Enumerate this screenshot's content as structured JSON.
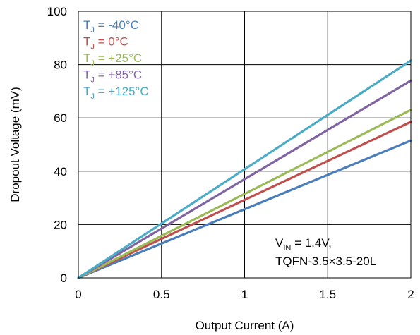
{
  "chart_data": {
    "type": "line",
    "title": "",
    "xlabel": "Output Current (A)",
    "ylabel": "Dropout Voltage (mV)",
    "xlim": [
      0,
      2
    ],
    "ylim": [
      0,
      100
    ],
    "xticks": [
      0,
      0.5,
      1,
      1.5,
      2
    ],
    "xtick_labels": [
      "0",
      "0.5",
      "1",
      "1.5",
      "2"
    ],
    "yticks": [
      0,
      20,
      40,
      60,
      80,
      100
    ],
    "ytick_labels": [
      "0",
      "20",
      "40",
      "60",
      "80",
      "100"
    ],
    "grid": true,
    "legend_position": "top-left",
    "series": [
      {
        "name": "T",
        "subscript": "J",
        "suffix": " = -40°C",
        "color": "#4a7ebb",
        "x": [
          0,
          2
        ],
        "y": [
          0,
          51.5
        ]
      },
      {
        "name": "T",
        "subscript": "J",
        "suffix": " = 0°C",
        "color": "#c0504d",
        "x": [
          0,
          2
        ],
        "y": [
          0,
          58.5
        ]
      },
      {
        "name": "T",
        "subscript": "J",
        "suffix": " = +25°C",
        "color": "#9bbb59",
        "x": [
          0,
          2
        ],
        "y": [
          0,
          63
        ]
      },
      {
        "name": "T",
        "subscript": "J",
        "suffix": " = +85°C",
        "color": "#8064a2",
        "x": [
          0,
          2
        ],
        "y": [
          0,
          74
        ]
      },
      {
        "name": "T",
        "subscript": "J",
        "suffix": " = +125°C",
        "color": "#4bacc6",
        "x": [
          0,
          2
        ],
        "y": [
          0,
          81.5
        ]
      }
    ],
    "annotation": {
      "line1_main": "V",
      "line1_sub": "IN",
      "line1_rest": " = 1.4V,",
      "line2": "TQFN-3.5×3.5-20L"
    }
  }
}
